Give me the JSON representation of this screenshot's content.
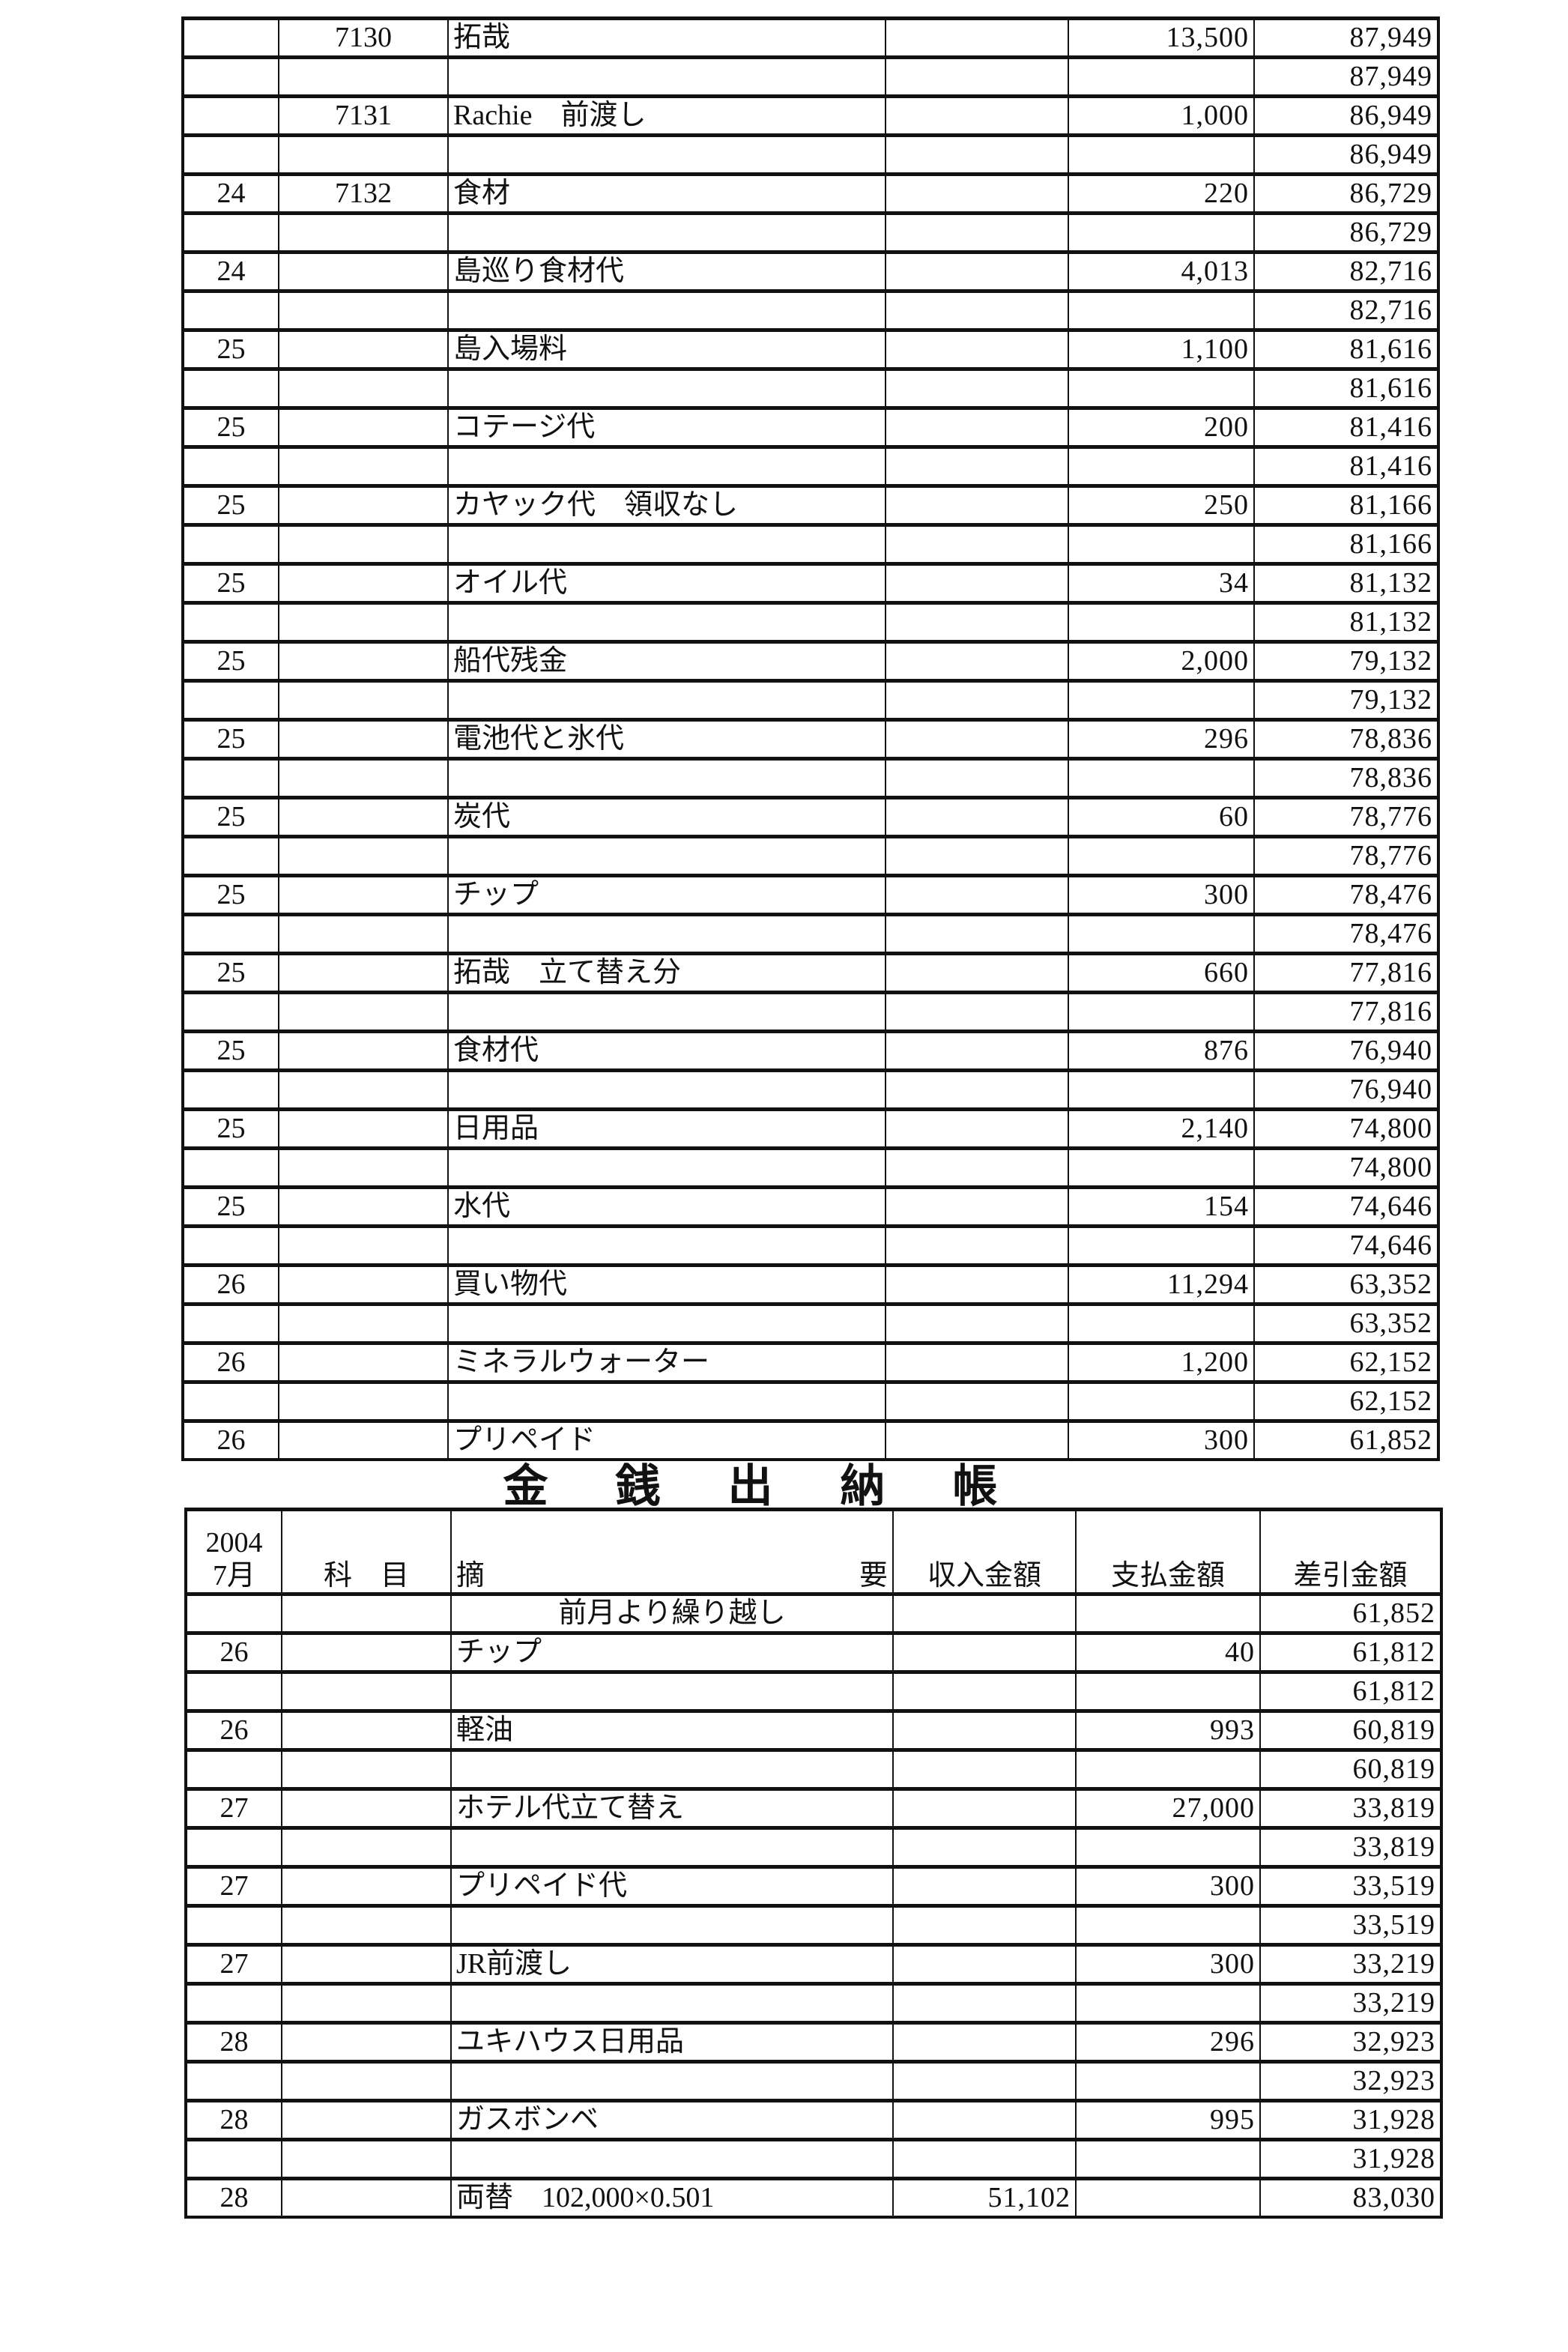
{
  "top_table": {
    "rows": [
      [
        "",
        "7130",
        "拓哉",
        "",
        "13,500",
        "87,949"
      ],
      [
        "",
        "",
        "",
        "",
        "",
        "87,949"
      ],
      [
        "",
        "7131",
        "Rachie　前渡し",
        "",
        "1,000",
        "86,949"
      ],
      [
        "",
        "",
        "",
        "",
        "",
        "86,949"
      ],
      [
        "24",
        "7132",
        "食材",
        "",
        "220",
        "86,729"
      ],
      [
        "",
        "",
        "",
        "",
        "",
        "86,729"
      ],
      [
        "24",
        "",
        "島巡り食材代",
        "",
        "4,013",
        "82,716"
      ],
      [
        "",
        "",
        "",
        "",
        "",
        "82,716"
      ],
      [
        "25",
        "",
        "島入場料",
        "",
        "1,100",
        "81,616"
      ],
      [
        "",
        "",
        "",
        "",
        "",
        "81,616"
      ],
      [
        "25",
        "",
        "コテージ代",
        "",
        "200",
        "81,416"
      ],
      [
        "",
        "",
        "",
        "",
        "",
        "81,416"
      ],
      [
        "25",
        "",
        "カヤック代　領収なし",
        "",
        "250",
        "81,166"
      ],
      [
        "",
        "",
        "",
        "",
        "",
        "81,166"
      ],
      [
        "25",
        "",
        "オイル代",
        "",
        "34",
        "81,132"
      ],
      [
        "",
        "",
        "",
        "",
        "",
        "81,132"
      ],
      [
        "25",
        "",
        "船代残金",
        "",
        "2,000",
        "79,132"
      ],
      [
        "",
        "",
        "",
        "",
        "",
        "79,132"
      ],
      [
        "25",
        "",
        "電池代と氷代",
        "",
        "296",
        "78,836"
      ],
      [
        "",
        "",
        "",
        "",
        "",
        "78,836"
      ],
      [
        "25",
        "",
        "炭代",
        "",
        "60",
        "78,776"
      ],
      [
        "",
        "",
        "",
        "",
        "",
        "78,776"
      ],
      [
        "25",
        "",
        "チップ",
        "",
        "300",
        "78,476"
      ],
      [
        "",
        "",
        "",
        "",
        "",
        "78,476"
      ],
      [
        "25",
        "",
        "拓哉　立て替え分",
        "",
        "660",
        "77,816"
      ],
      [
        "",
        "",
        "",
        "",
        "",
        "77,816"
      ],
      [
        "25",
        "",
        "食材代",
        "",
        "876",
        "76,940"
      ],
      [
        "",
        "",
        "",
        "",
        "",
        "76,940"
      ],
      [
        "25",
        "",
        "日用品",
        "",
        "2,140",
        "74,800"
      ],
      [
        "",
        "",
        "",
        "",
        "",
        "74,800"
      ],
      [
        "25",
        "",
        "水代",
        "",
        "154",
        "74,646"
      ],
      [
        "",
        "",
        "",
        "",
        "",
        "74,646"
      ],
      [
        "26",
        "",
        "買い物代",
        "",
        "11,294",
        "63,352"
      ],
      [
        "",
        "",
        "",
        "",
        "",
        "63,352"
      ],
      [
        "26",
        "",
        "ミネラルウォーター",
        "",
        "1,200",
        "62,152"
      ],
      [
        "",
        "",
        "",
        "",
        "",
        "62,152"
      ],
      [
        "26",
        "",
        "プリペイド",
        "",
        "300",
        "61,852"
      ]
    ]
  },
  "title": "金銭出納帳",
  "bottom_table": {
    "header": {
      "year": "2004",
      "month": "7月",
      "subject": "科　目",
      "desc_left": "摘",
      "desc_right": "要",
      "income": "収入金額",
      "payment": "支払金額",
      "balance": "差引金額"
    },
    "carry_over": {
      "label": "前月より繰り越し",
      "balance": "61,852"
    },
    "rows": [
      [
        "26",
        "",
        "チップ",
        "",
        "40",
        "61,812"
      ],
      [
        "",
        "",
        "",
        "",
        "",
        "61,812"
      ],
      [
        "26",
        "",
        "軽油",
        "",
        "993",
        "60,819"
      ],
      [
        "",
        "",
        "",
        "",
        "",
        "60,819"
      ],
      [
        "27",
        "",
        "ホテル代立て替え",
        "",
        "27,000",
        "33,819"
      ],
      [
        "",
        "",
        "",
        "",
        "",
        "33,819"
      ],
      [
        "27",
        "",
        "プリペイド代",
        "",
        "300",
        "33,519"
      ],
      [
        "",
        "",
        "",
        "",
        "",
        "33,519"
      ],
      [
        "27",
        "",
        "JR前渡し",
        "",
        "300",
        "33,219"
      ],
      [
        "",
        "",
        "",
        "",
        "",
        "33,219"
      ],
      [
        "28",
        "",
        "ユキハウス日用品",
        "",
        "296",
        "32,923"
      ],
      [
        "",
        "",
        "",
        "",
        "",
        "32,923"
      ],
      [
        "28",
        "",
        "ガスボンベ",
        "",
        "995",
        "31,928"
      ],
      [
        "",
        "",
        "",
        "",
        "",
        "31,928"
      ],
      [
        "28",
        "",
        "両替　102,000×0.501",
        "51,102",
        "",
        "83,030"
      ]
    ]
  }
}
